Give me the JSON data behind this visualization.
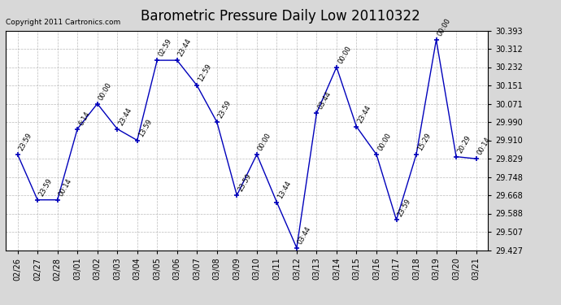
{
  "title": "Barometric Pressure Daily Low 20110322",
  "copyright": "Copyright 2011 Cartronics.com",
  "x_labels": [
    "02/26",
    "02/27",
    "02/28",
    "03/01",
    "03/02",
    "03/03",
    "03/04",
    "03/05",
    "03/06",
    "03/07",
    "03/08",
    "03/09",
    "03/10",
    "03/11",
    "03/12",
    "03/13",
    "03/14",
    "03/15",
    "03/16",
    "03/17",
    "03/18",
    "03/19",
    "03/20",
    "03/21"
  ],
  "y_values": [
    29.848,
    29.648,
    29.648,
    29.96,
    30.071,
    29.96,
    29.91,
    30.262,
    30.262,
    30.151,
    29.99,
    29.668,
    29.848,
    29.638,
    29.437,
    30.03,
    30.232,
    29.97,
    29.848,
    29.56,
    29.848,
    30.352,
    29.838,
    29.829
  ],
  "point_labels": [
    "23:59",
    "23:59",
    "00:14",
    "6:14",
    "00:00",
    "23:44",
    "13:59",
    "02:59",
    "23:44",
    "12:59",
    "23:59",
    "23:59",
    "00:00",
    "13:44",
    "03:44",
    "03:44",
    "00:00",
    "23:44",
    "00:00",
    "23:59",
    "15:29",
    "00:00",
    "20:29",
    "00:14"
  ],
  "ylim_min": 29.427,
  "ylim_max": 30.393,
  "yticks": [
    29.427,
    29.507,
    29.588,
    29.668,
    29.748,
    29.829,
    29.91,
    29.99,
    30.071,
    30.151,
    30.232,
    30.312,
    30.393
  ],
  "line_color": "#0000bb",
  "marker_color": "#0000bb",
  "bg_color": "#d8d8d8",
  "plot_bg_color": "#ffffff",
  "grid_color": "#aaaaaa",
  "title_fontsize": 12,
  "label_fontsize": 6,
  "tick_fontsize": 7,
  "copyright_fontsize": 6.5
}
